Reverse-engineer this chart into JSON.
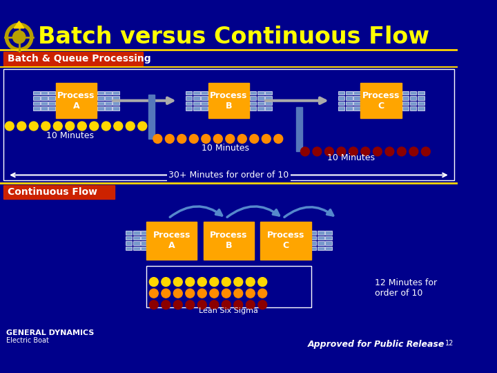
{
  "title": "Batch versus Continuous Flow",
  "title_color": "#FFFF00",
  "bg_color": "#00008B",
  "section1_label": "Batch & Queue Processing",
  "section2_label": "Continuous Flow",
  "section_label_bg": "#CC2200",
  "section_label_color": "#FFFFFF",
  "process_box_color": "#FFA500",
  "process_box_text_color": "#FFFFFF",
  "process_labels": [
    "Process\nA",
    "Process\nB",
    "Process\nC"
  ],
  "arrow_color": "#4477CC",
  "dot_colors": {
    "yellow": "#FFD700",
    "orange": "#FF8C00",
    "dark_red": "#8B0000"
  },
  "minutes_10_text": "10 Minutes",
  "minutes_30_text": "30+ Minutes for order of 10",
  "minutes_12_text": "12 Minutes for\norder of 10",
  "lean_six_sigma": "Lean Six Sigma",
  "approved_text": "Approved for Public Release",
  "approved_superscript": "12",
  "gold_line_color": "#FFD700",
  "white_color": "#FFFFFF",
  "stack_box_color": "#7799CC"
}
